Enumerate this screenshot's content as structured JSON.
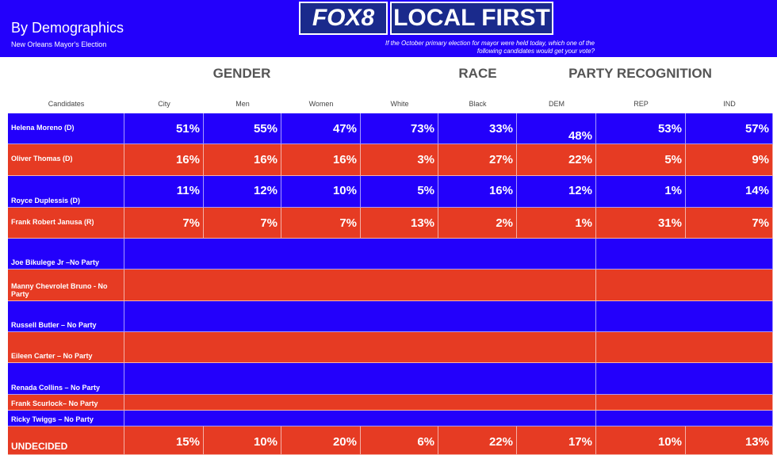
{
  "header": {
    "title": "By Demographics",
    "subtitle": "New Orleans Mayor's Election",
    "logo_left": "FOX8",
    "logo_right": "LOCAL FIRST",
    "question": "If the October primary election for mayor were held today, which one of the following candidates would get your vote?"
  },
  "table": {
    "groups": [
      "GENDER",
      "RACE",
      "PARTY RECOGNITION"
    ],
    "columns": [
      "Candidates",
      "City",
      "Men",
      "Women",
      "White",
      "Black",
      "DEM",
      "REP",
      "IND"
    ],
    "rows": [
      {
        "name": "Helena Moreno (D)",
        "color": "#2300fb",
        "cells": [
          "51%",
          "55%",
          "47%",
          "73%",
          "33%",
          "48%",
          "53%",
          "57%"
        ]
      },
      {
        "name": "Oliver Thomas (D)",
        "color": "#e63b23",
        "cells": [
          "16%",
          "16%",
          "16%",
          "3%",
          "27%",
          "22%",
          "5%",
          "9%"
        ]
      },
      {
        "name": "Royce Duplessis (D)",
        "color": "#2300fb",
        "cells": [
          "11%",
          "12%",
          "10%",
          "5%",
          "16%",
          "12%",
          "1%",
          "14%"
        ]
      },
      {
        "name": "Frank Robert Janusa (R)",
        "color": "#e63b23",
        "cells": [
          "7%",
          "7%",
          "7%",
          "13%",
          "2%",
          "1%",
          "31%",
          "7%"
        ]
      },
      {
        "name": "Joe Bikulege Jr –No Party",
        "color": "#2300fb"
      },
      {
        "name": "Manny Chevrolet Bruno - No Party",
        "color": "#e63b23"
      },
      {
        "name": "Russell Butler – No Party",
        "color": "#2300fb"
      },
      {
        "name": "Eileen Carter – No Party",
        "color": "#e63b23"
      },
      {
        "name": "Renada Collins – No Party",
        "color": "#2300fb"
      },
      {
        "name": "Frank Scurlock– No Party",
        "color": "#e63b23"
      },
      {
        "name": "Ricky Twiggs – No Party",
        "color": "#2300fb"
      },
      {
        "name": "UNDECIDED",
        "color": "#e63b23",
        "cells": [
          "15%",
          "10%",
          "20%",
          "6%",
          "22%",
          "17%",
          "10%",
          "13%"
        ]
      }
    ]
  }
}
